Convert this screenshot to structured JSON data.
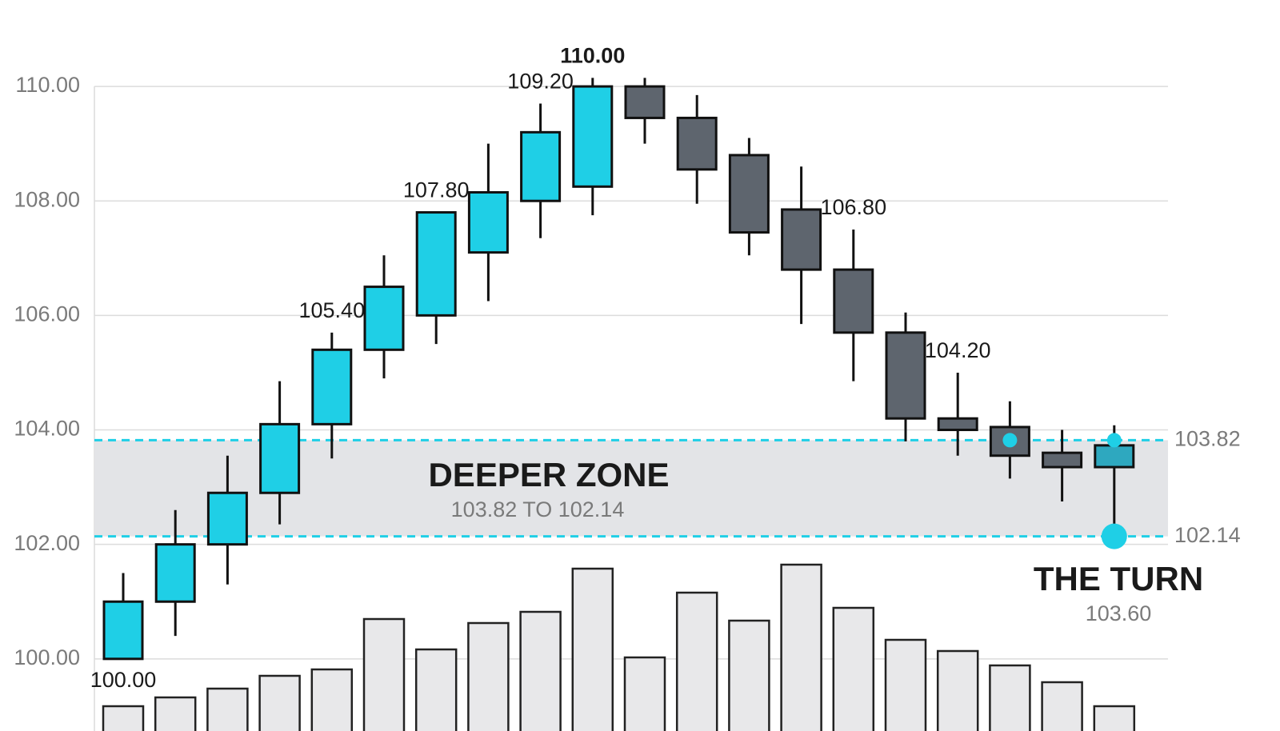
{
  "chart_data": {
    "type": "candlestick",
    "ylim": [
      98.74,
      111.51
    ],
    "yticks": [
      {
        "value": 100,
        "label": "100.00"
      },
      {
        "value": 102,
        "label": "102.00"
      },
      {
        "value": 104,
        "label": "104.00"
      },
      {
        "value": 106,
        "label": "106.00"
      },
      {
        "value": 108,
        "label": "108.00"
      },
      {
        "value": 110,
        "label": "110.00"
      }
    ],
    "volume_lim": [
      0,
      1000
    ],
    "grid": true,
    "up_color": "#1fcfe6",
    "down_color": "#5e656e",
    "volume_color": "#e8e8ea",
    "marker_color": "#1fcfe6",
    "candles": [
      {
        "open": 100.0,
        "high": 101.5,
        "low": 100.0,
        "close": 101.0,
        "volume": 124,
        "labels": {
          "low": "100.00"
        }
      },
      {
        "open": 101.0,
        "high": 102.6,
        "low": 100.4,
        "close": 102.0,
        "volume": 168
      },
      {
        "open": 102.0,
        "high": 103.55,
        "low": 101.3,
        "close": 102.9,
        "volume": 212
      },
      {
        "open": 102.9,
        "high": 104.85,
        "low": 102.35,
        "close": 104.1,
        "volume": 276
      },
      {
        "open": 104.1,
        "high": 105.7,
        "low": 103.5,
        "close": 105.4,
        "volume": 308,
        "labels": {
          "close": "105.40"
        }
      },
      {
        "open": 105.4,
        "high": 107.05,
        "low": 104.9,
        "close": 106.5,
        "volume": 560
      },
      {
        "open": 106.0,
        "high": 107.8,
        "low": 105.5,
        "close": 107.8,
        "volume": 408,
        "labels": {
          "close": "107.80"
        }
      },
      {
        "open": 107.1,
        "high": 109.0,
        "low": 106.25,
        "close": 108.15,
        "volume": 540
      },
      {
        "open": 108.0,
        "high": 109.7,
        "low": 107.35,
        "close": 109.2,
        "volume": 596,
        "labels": {
          "close": "109.20"
        }
      },
      {
        "open": 108.25,
        "high": 110.15,
        "low": 107.75,
        "close": 110.0,
        "volume": 812,
        "labels": {
          "close": "110.00"
        }
      },
      {
        "open": 110.0,
        "high": 110.15,
        "low": 109.0,
        "close": 109.45,
        "volume": 368
      },
      {
        "open": 109.45,
        "high": 109.85,
        "low": 107.95,
        "close": 108.55,
        "volume": 692
      },
      {
        "open": 108.8,
        "high": 109.1,
        "low": 107.05,
        "close": 107.45,
        "volume": 552
      },
      {
        "open": 107.85,
        "high": 108.6,
        "low": 105.85,
        "close": 106.8,
        "volume": 832
      },
      {
        "open": 106.8,
        "high": 107.5,
        "low": 104.85,
        "close": 105.7,
        "volume": 616,
        "labels": {
          "open": "106.80"
        }
      },
      {
        "open": 105.7,
        "high": 106.05,
        "low": 103.8,
        "close": 104.2,
        "volume": 456
      },
      {
        "open": 104.2,
        "high": 105.0,
        "low": 103.55,
        "close": 104.0,
        "volume": 400,
        "labels": {
          "open": "104.20"
        }
      },
      {
        "open": 104.05,
        "high": 104.5,
        "low": 103.15,
        "close": 103.55,
        "volume": 328,
        "marker": true
      },
      {
        "open": 103.6,
        "high": 104.0,
        "low": 102.75,
        "close": 103.35,
        "volume": 244
      },
      {
        "open": 103.35,
        "high": 104.08,
        "low": 102.14,
        "close": 103.73,
        "volume": 124,
        "color": "#2ea8bf",
        "marker": true
      }
    ],
    "zone": {
      "upper": 103.82,
      "lower": 102.14,
      "upper_label": "103.82",
      "lower_label": "102.14",
      "color": "#1fcfe6",
      "title": "DEEPER ZONE",
      "subtitle": "103.82 TO 102.14"
    },
    "turn": {
      "title": "THE TURN",
      "value": 103.6,
      "value_label": "103.60"
    }
  }
}
